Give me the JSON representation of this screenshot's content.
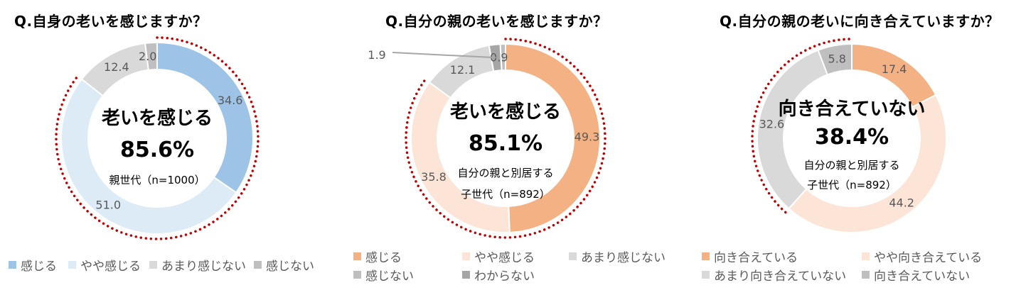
{
  "colors": {
    "red_dots": "#C00000",
    "label": "#595959",
    "blue_dark": "#9DC3E6",
    "blue_light": "#DDEBF7",
    "orange_dark": "#F4B183",
    "orange_light": "#FCE4D6",
    "gray_light": "#D9D9D9",
    "gray_mid": "#BFBFBF",
    "gray_dark": "#A6A6A6"
  },
  "chart_data": [
    {
      "type": "pie",
      "title": "Q.自身の老いを感じますか？",
      "center": {
        "headline": "老いを感じる",
        "percent": "85.6%",
        "line1": "親世代（n=1000）",
        "line2": ""
      },
      "categories": [
        "感じる",
        "やや感じる",
        "あまり感じない",
        "感じない"
      ],
      "values": [
        34.6,
        51.0,
        12.4,
        2.0
      ],
      "labels": [
        "34.6",
        "51.0",
        "12.4",
        "2.0"
      ],
      "colors": [
        "#9DC3E6",
        "#DDEBF7",
        "#D9D9D9",
        "#BFBFBF"
      ],
      "highlight_slices": [
        0,
        1
      ],
      "legend": [
        "感じる",
        "やや感じる",
        "あまり感じない",
        "感じない"
      ]
    },
    {
      "type": "pie",
      "title": "Q.自分の親の老いを感じますか？",
      "center": {
        "headline": "老いを感じる",
        "percent": "85.1%",
        "line1": "自分の親と別居する",
        "line2": "子世代（n=892）"
      },
      "categories": [
        "感じる",
        "やや感じる",
        "あまり感じない",
        "感じない",
        "わからない"
      ],
      "values": [
        49.3,
        35.8,
        12.1,
        0.9,
        1.9
      ],
      "labels": [
        "49.3",
        "35.8",
        "12.1",
        "0.9",
        "1.9"
      ],
      "colors": [
        "#F4B183",
        "#FCE4D6",
        "#D9D9D9",
        "#BFBFBF",
        "#A6A6A6"
      ],
      "highlight_slices": [
        0,
        1
      ],
      "legend": [
        "感じる",
        "やや感じる",
        "あまり感じない",
        "感じない",
        "わからない"
      ]
    },
    {
      "type": "pie",
      "title": "Q.自分の親の老いに向き合えていますか？",
      "center": {
        "headline": "向き合えていない",
        "percent": "38.4%",
        "line1": "自分の親と別居する",
        "line2": "子世代（n=892）"
      },
      "categories": [
        "向き合えている",
        "やや向き合えている",
        "あまり向き合えていない",
        "向き合えていない"
      ],
      "values": [
        17.4,
        44.2,
        32.6,
        5.8
      ],
      "labels": [
        "17.4",
        "44.2",
        "32.6",
        "5.8"
      ],
      "colors": [
        "#F4B183",
        "#FCE4D6",
        "#D9D9D9",
        "#BFBFBF"
      ],
      "highlight_slices": [
        2,
        3
      ],
      "legend": [
        "向き合えている",
        "やや向き合えている",
        "あまり向き合えていない",
        "向き合えていない"
      ]
    }
  ]
}
